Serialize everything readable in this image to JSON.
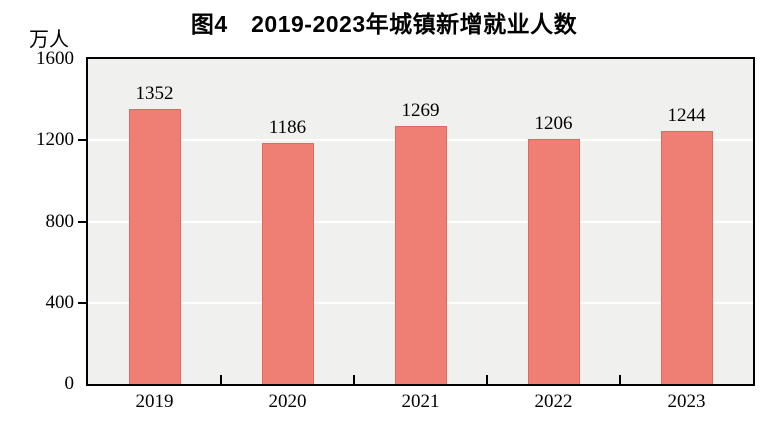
{
  "title": "图4　2019-2023年城镇新增就业人数",
  "chart_data": {
    "type": "bar",
    "title": "图4　2019-2023年城镇新增就业人数",
    "unit_label": "万人",
    "categories": [
      "2019",
      "2020",
      "2021",
      "2022",
      "2023"
    ],
    "values": [
      1352,
      1186,
      1269,
      1206,
      1244
    ],
    "xlabel": "",
    "ylabel": "万人",
    "ylim": [
      0,
      1600
    ],
    "yticks": [
      0,
      400,
      800,
      1200,
      1600
    ],
    "gridline_levels": [
      400,
      800,
      1200
    ],
    "legend": "none",
    "grid": true,
    "bar_labels_shown": true,
    "colors": {
      "bar_fill": "#ef7f75",
      "bar_border": "#e2685d",
      "plot_background": "#f0f0ee",
      "gridline": "#ffffff",
      "axis_frame": "#000000",
      "text": "#000000",
      "page_background": "#ffffff"
    }
  }
}
